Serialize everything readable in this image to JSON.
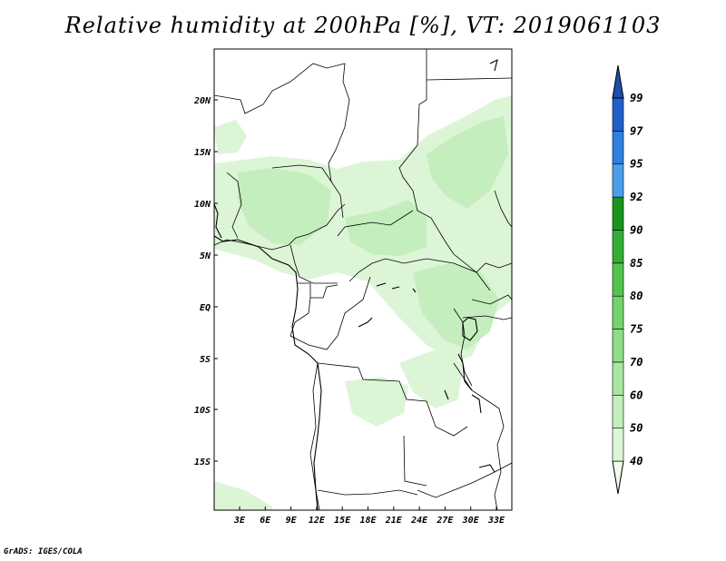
{
  "title": "Relative humidity at 200hPa [%], VT: 2019061103",
  "credit": "GrADS: IGES/COLA",
  "map": {
    "lat_labels": [
      "20N",
      "15N",
      "10N",
      "5N",
      "EQ",
      "5S",
      "10S",
      "15S"
    ],
    "lon_labels": [
      "3E",
      "6E",
      "9E",
      "12E",
      "15E",
      "18E",
      "21E",
      "24E",
      "27E",
      "30E",
      "33E"
    ]
  },
  "colorbar": {
    "levels": [
      "40",
      "50",
      "60",
      "70",
      "75",
      "80",
      "85",
      "90",
      "92",
      "95",
      "97",
      "99"
    ],
    "colors": [
      "#f0fbee",
      "#dcf5d6",
      "#c4eebd",
      "#a9e6a2",
      "#8fdd86",
      "#74d46b",
      "#55c44d",
      "#34ad34",
      "#1b941f",
      "#4a9eea",
      "#2f7fe0",
      "#1f5fc8",
      "#1a4fae"
    ]
  }
}
